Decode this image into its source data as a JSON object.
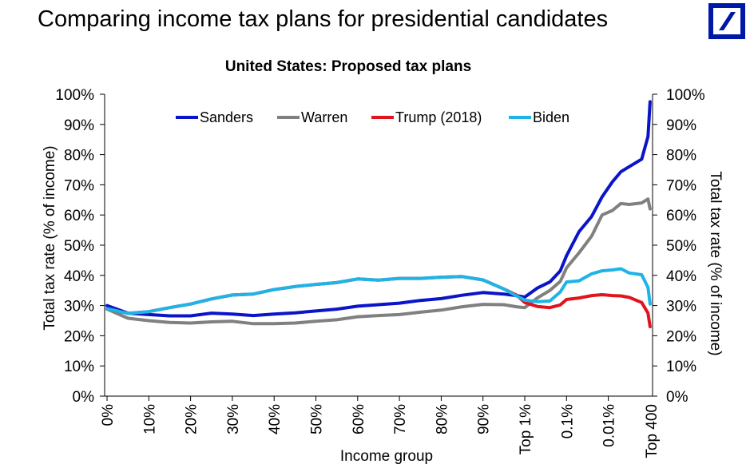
{
  "page": {
    "title": "Comparing income tax plans for presidential candidates",
    "logo": "deutsche-bank-logo-icon"
  },
  "chart_data": {
    "type": "line",
    "title": "United States: Proposed tax plans",
    "xlabel": "Income group",
    "ylabel": "Total tax rate (% of income)",
    "ylabel_right": "Total tax rate (% of income)",
    "ylim": [
      0,
      100
    ],
    "yticks": [
      0,
      10,
      20,
      30,
      40,
      50,
      60,
      70,
      80,
      90,
      100
    ],
    "ytick_labels": [
      "0%",
      "10%",
      "20%",
      "30%",
      "40%",
      "50%",
      "60%",
      "70%",
      "80%",
      "90%",
      "100%"
    ],
    "categories": [
      "0%",
      "10%",
      "20%",
      "30%",
      "40%",
      "50%",
      "60%",
      "70%",
      "80%",
      "90%",
      "Top 1%",
      "0.1%",
      "0.01%",
      "Top 400"
    ],
    "x_note": "x values are positions along the category axis (0 = '0%', 10 = 'Top 1%', 13 = 'Top 400')",
    "grid": false,
    "legend": {
      "placement": "top-center"
    },
    "series": [
      {
        "name": "Sanders",
        "color": "#0a14c8",
        "x": [
          0,
          0.5,
          1.0,
          1.5,
          2.0,
          2.5,
          3.0,
          3.5,
          4.0,
          4.5,
          5.0,
          5.5,
          6.0,
          6.5,
          7.0,
          7.5,
          8.0,
          8.5,
          9.0,
          9.5,
          9.8,
          10.0,
          10.3,
          10.6,
          10.85,
          11.0,
          11.3,
          11.6,
          11.85,
          12.1,
          12.3,
          12.5,
          12.8,
          12.95,
          13.0
        ],
        "y": [
          30.0,
          27.5,
          27.0,
          26.6,
          26.6,
          27.5,
          27.2,
          26.7,
          27.2,
          27.6,
          28.2,
          28.8,
          29.8,
          30.3,
          30.8,
          31.7,
          32.3,
          33.4,
          34.3,
          33.8,
          33.3,
          32.8,
          35.8,
          37.8,
          41.5,
          46.5,
          54.5,
          59.5,
          66.0,
          71.0,
          74.3,
          76.0,
          78.5,
          86.0,
          97.5
        ]
      },
      {
        "name": "Warren",
        "color": "#808080",
        "x": [
          0,
          0.5,
          1.0,
          1.5,
          2.0,
          2.5,
          3.0,
          3.5,
          4.0,
          4.5,
          5.0,
          5.5,
          6.0,
          6.5,
          7.0,
          7.5,
          8.0,
          8.5,
          9.0,
          9.5,
          9.8,
          10.0,
          10.3,
          10.6,
          10.85,
          11.0,
          11.3,
          11.6,
          11.85,
          12.1,
          12.3,
          12.5,
          12.8,
          12.95,
          13.0
        ],
        "y": [
          28.8,
          25.8,
          25.0,
          24.4,
          24.2,
          24.6,
          24.8,
          24.0,
          24.0,
          24.2,
          24.8,
          25.3,
          26.3,
          26.7,
          27.0,
          27.8,
          28.5,
          29.6,
          30.4,
          30.3,
          29.6,
          29.3,
          32.5,
          35.0,
          38.0,
          42.5,
          47.5,
          53.0,
          60.0,
          61.5,
          63.8,
          63.5,
          64.0,
          65.3,
          62.0
        ]
      },
      {
        "name": "Trump (2018)",
        "color": "#e1141e",
        "x": [
          0,
          0.5,
          1.0,
          1.5,
          2.0,
          2.5,
          3.0,
          3.5,
          4.0,
          4.5,
          5.0,
          5.5,
          6.0,
          6.5,
          7.0,
          7.5,
          8.0,
          8.5,
          9.0,
          9.5,
          9.8,
          10.0,
          10.3,
          10.6,
          10.85,
          11.0,
          11.3,
          11.6,
          11.85,
          12.1,
          12.3,
          12.5,
          12.8,
          12.95,
          13.0
        ],
        "y": [
          29.0,
          27.4,
          28.0,
          29.3,
          30.5,
          32.2,
          33.5,
          33.8,
          35.3,
          36.3,
          37.0,
          37.6,
          38.8,
          38.4,
          39.0,
          39.0,
          39.4,
          39.6,
          38.5,
          35.5,
          33.5,
          31.0,
          29.7,
          29.3,
          30.2,
          32.0,
          32.5,
          33.3,
          33.6,
          33.3,
          33.2,
          32.7,
          31.0,
          27.5,
          23.0
        ]
      },
      {
        "name": "Biden",
        "color": "#1eb4e6",
        "x": [
          0,
          0.5,
          1.0,
          1.5,
          2.0,
          2.5,
          3.0,
          3.5,
          4.0,
          4.5,
          5.0,
          5.5,
          6.0,
          6.5,
          7.0,
          7.5,
          8.0,
          8.5,
          9.0,
          9.5,
          9.8,
          10.0,
          10.3,
          10.6,
          10.85,
          11.0,
          11.3,
          11.6,
          11.85,
          12.1,
          12.3,
          12.5,
          12.8,
          12.95,
          13.0
        ],
        "y": [
          29.0,
          27.4,
          28.0,
          29.3,
          30.5,
          32.2,
          33.5,
          33.8,
          35.3,
          36.3,
          37.0,
          37.6,
          38.8,
          38.4,
          39.0,
          39.0,
          39.4,
          39.6,
          38.5,
          35.5,
          33.2,
          31.8,
          31.3,
          31.5,
          34.5,
          37.8,
          38.2,
          40.5,
          41.5,
          41.8,
          42.2,
          40.8,
          40.2,
          36.0,
          30.5
        ]
      }
    ]
  }
}
